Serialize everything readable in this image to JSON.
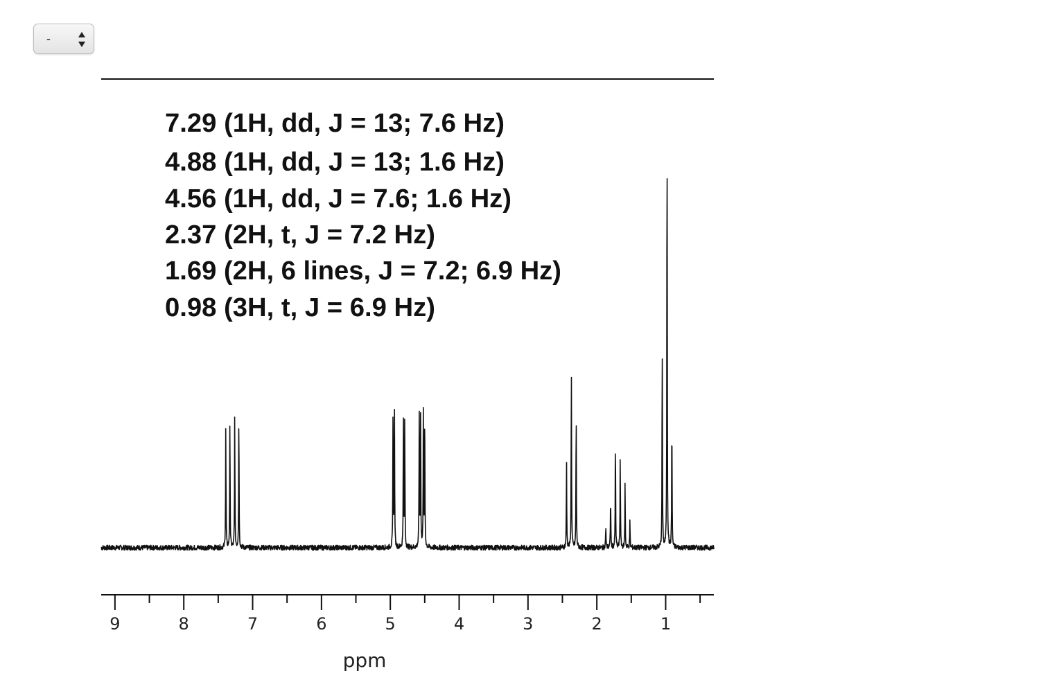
{
  "controls": {
    "selector": {
      "value": "-"
    }
  },
  "chart_data": {
    "type": "line",
    "title": "",
    "xlabel": "ppm",
    "ylabel": "",
    "x_reversed": true,
    "xlim": [
      9.2,
      0.3
    ],
    "ylim": [
      0,
      1
    ],
    "grid": false,
    "xticks_major": [
      9,
      8,
      7,
      6,
      5,
      4,
      3,
      2,
      1
    ],
    "xtick_labels": [
      "9",
      "8",
      "7",
      "6",
      "5",
      "4",
      "3",
      "2",
      "1"
    ],
    "annotations": [
      "7.29 (1H, dd, J = 13; 7.6 Hz)",
      "4.88 (1H, dd, J = 13; 1.6 Hz)",
      "4.56 (1H, dd, J = 7.6; 1.6 Hz)",
      "2.37 (2H, t, J = 7.2 Hz)",
      "1.69 (2H, 6 lines, J = 7.2; 6.9 Hz)",
      "0.98 (3H, t, J = 6.9 Hz)"
    ],
    "peaks": [
      {
        "x": 7.39,
        "y": 0.28
      },
      {
        "x": 7.33,
        "y": 0.3
      },
      {
        "x": 7.26,
        "y": 0.31
      },
      {
        "x": 7.2,
        "y": 0.31
      },
      {
        "x": 4.96,
        "y": 0.34
      },
      {
        "x": 4.94,
        "y": 0.33
      },
      {
        "x": 4.81,
        "y": 0.3
      },
      {
        "x": 4.79,
        "y": 0.3
      },
      {
        "x": 4.58,
        "y": 0.32
      },
      {
        "x": 4.56,
        "y": 0.32
      },
      {
        "x": 4.52,
        "y": 0.32
      },
      {
        "x": 4.5,
        "y": 0.32
      },
      {
        "x": 2.44,
        "y": 0.2
      },
      {
        "x": 2.37,
        "y": 0.42
      },
      {
        "x": 2.3,
        "y": 0.32
      },
      {
        "x": 1.87,
        "y": 0.05
      },
      {
        "x": 1.8,
        "y": 0.12
      },
      {
        "x": 1.73,
        "y": 0.25
      },
      {
        "x": 1.66,
        "y": 0.22
      },
      {
        "x": 1.59,
        "y": 0.15
      },
      {
        "x": 1.52,
        "y": 0.06
      },
      {
        "x": 1.05,
        "y": 0.47
      },
      {
        "x": 0.98,
        "y": 1.0
      },
      {
        "x": 0.91,
        "y": 0.3
      }
    ]
  }
}
